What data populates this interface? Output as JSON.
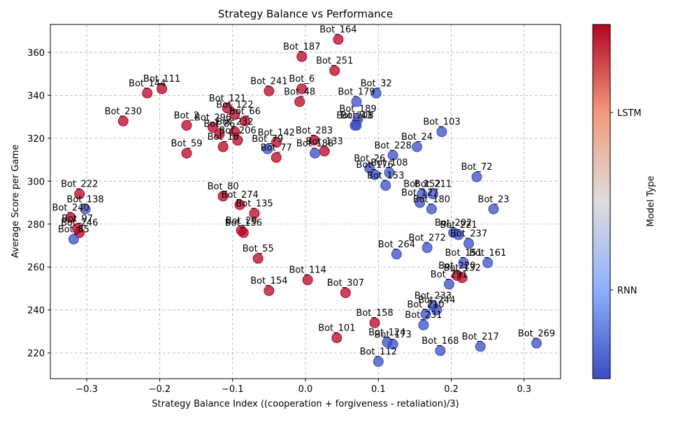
{
  "chart_data": {
    "type": "scatter",
    "title": "Strategy Balance vs Performance",
    "xlabel": "Strategy Balance Index ((cooperation + forgiveness - retaliation)/3)",
    "ylabel": "Average Score per Game",
    "xlim": [
      -0.35,
      0.35
    ],
    "ylim": [
      208,
      373
    ],
    "xticks": [
      -0.3,
      -0.2,
      -0.1,
      0.0,
      0.1,
      0.2,
      0.3
    ],
    "xtick_labels": [
      "−0.3",
      "−0.2",
      "−0.1",
      "0.0",
      "0.1",
      "0.2",
      "0.3"
    ],
    "yticks": [
      220,
      240,
      260,
      280,
      300,
      320,
      340,
      360
    ],
    "ytick_labels": [
      "220",
      "240",
      "260",
      "280",
      "300",
      "320",
      "340",
      "360"
    ],
    "grid": true,
    "colorbar": {
      "label": "Model Type",
      "ticks": [
        {
          "label": "LSTM",
          "value": 1
        },
        {
          "label": "RNN",
          "value": 0
        }
      ],
      "low_color": "#3b4cc0",
      "mid_color": "#dddddd",
      "high_color": "#b40426"
    },
    "colors": {
      "RNN": "#3b4cc0",
      "LSTM": "#b40426"
    },
    "points": [
      {
        "name": "Bot_164",
        "x": 0.045,
        "y": 366,
        "model": "LSTM"
      },
      {
        "name": "Bot_187",
        "x": -0.005,
        "y": 358,
        "model": "LSTM"
      },
      {
        "name": "Bot_251",
        "x": 0.04,
        "y": 351.5,
        "model": "LSTM"
      },
      {
        "name": "Bot_111",
        "x": -0.197,
        "y": 343,
        "model": "LSTM"
      },
      {
        "name": "Bot_144",
        "x": -0.217,
        "y": 341,
        "model": "LSTM"
      },
      {
        "name": "Bot_241",
        "x": -0.05,
        "y": 342,
        "model": "LSTM"
      },
      {
        "name": "Bot_6",
        "x": -0.005,
        "y": 343,
        "model": "LSTM"
      },
      {
        "name": "Bot_32",
        "x": 0.097,
        "y": 341,
        "model": "RNN"
      },
      {
        "name": "Bot_48",
        "x": -0.008,
        "y": 337,
        "model": "LSTM"
      },
      {
        "name": "Bot_179",
        "x": 0.07,
        "y": 337,
        "model": "RNN"
      },
      {
        "name": "Bot_121",
        "x": -0.107,
        "y": 334,
        "model": "LSTM"
      },
      {
        "name": "Bot_122",
        "x": -0.097,
        "y": 331,
        "model": "LSTM"
      },
      {
        "name": "Bot_230",
        "x": -0.25,
        "y": 328,
        "model": "LSTM"
      },
      {
        "name": "Bot_2",
        "x": -0.163,
        "y": 326,
        "model": "LSTM"
      },
      {
        "name": "Bot_66",
        "x": -0.083,
        "y": 328,
        "model": "LSTM"
      },
      {
        "name": "Bot_296",
        "x": -0.127,
        "y": 325,
        "model": "LSTM"
      },
      {
        "name": "Bot_232",
        "x": -0.097,
        "y": 323,
        "model": "LSTM"
      },
      {
        "name": "Bot_206",
        "x": -0.093,
        "y": 319,
        "model": "LSTM"
      },
      {
        "name": "Bot_86",
        "x": -0.118,
        "y": 322,
        "model": "LSTM"
      },
      {
        "name": "Bot_10",
        "x": -0.113,
        "y": 316,
        "model": "LSTM"
      },
      {
        "name": "Bot_59",
        "x": -0.163,
        "y": 313,
        "model": "LSTM"
      },
      {
        "name": "Bot_142",
        "x": -0.04,
        "y": 318,
        "model": "LSTM"
      },
      {
        "name": "Bot_79",
        "x": -0.052,
        "y": 315,
        "model": "RNN"
      },
      {
        "name": "Bot_77",
        "x": -0.04,
        "y": 311,
        "model": "LSTM"
      },
      {
        "name": "Bot_208",
        "x": 0.068,
        "y": 326,
        "model": "RNN"
      },
      {
        "name": "Bot_189",
        "x": 0.072,
        "y": 329,
        "model": "RNN"
      },
      {
        "name": "Bot_43",
        "x": 0.07,
        "y": 326,
        "model": "RNN"
      },
      {
        "name": "Bot_103",
        "x": 0.187,
        "y": 323,
        "model": "RNN"
      },
      {
        "name": "Bot_24",
        "x": 0.153,
        "y": 316,
        "model": "RNN"
      },
      {
        "name": "Bot_228",
        "x": 0.12,
        "y": 312,
        "model": "RNN"
      },
      {
        "name": "Bot_26",
        "x": 0.088,
        "y": 306,
        "model": "RNN"
      },
      {
        "name": "Bot_108",
        "x": 0.115,
        "y": 304,
        "model": "RNN"
      },
      {
        "name": "Bot_176",
        "x": 0.095,
        "y": 303,
        "model": "RNN"
      },
      {
        "name": "Bot_283",
        "x": 0.012,
        "y": 319,
        "model": "LSTM"
      },
      {
        "name": "Bot_133",
        "x": 0.026,
        "y": 314,
        "model": "LSTM"
      },
      {
        "name": "Bot_188",
        "x": 0.013,
        "y": 313,
        "model": "RNN"
      },
      {
        "name": "Bot_153",
        "x": 0.11,
        "y": 298,
        "model": "RNN"
      },
      {
        "name": "Bot_72",
        "x": 0.235,
        "y": 302,
        "model": "RNN"
      },
      {
        "name": "Bot_152",
        "x": 0.16,
        "y": 294,
        "model": "RNN"
      },
      {
        "name": "Bot_211",
        "x": 0.175,
        "y": 294,
        "model": "RNN"
      },
      {
        "name": "Bot_127",
        "x": 0.157,
        "y": 290,
        "model": "RNN"
      },
      {
        "name": "Bot_180",
        "x": 0.173,
        "y": 287,
        "model": "RNN"
      },
      {
        "name": "Bot_23",
        "x": 0.258,
        "y": 287,
        "model": "RNN"
      },
      {
        "name": "Bot_80",
        "x": -0.113,
        "y": 293,
        "model": "LSTM"
      },
      {
        "name": "Bot_274",
        "x": -0.09,
        "y": 289,
        "model": "LSTM"
      },
      {
        "name": "Bot_135",
        "x": -0.07,
        "y": 285,
        "model": "LSTM"
      },
      {
        "name": "Bot_222",
        "x": -0.31,
        "y": 294,
        "model": "LSTM"
      },
      {
        "name": "Bot_138",
        "x": -0.302,
        "y": 287,
        "model": "RNN"
      },
      {
        "name": "Bot_240",
        "x": -0.322,
        "y": 283,
        "model": "LSTM"
      },
      {
        "name": "Bot_97",
        "x": -0.313,
        "y": 278,
        "model": "LSTM"
      },
      {
        "name": "Bot_246",
        "x": -0.31,
        "y": 276,
        "model": "LSTM"
      },
      {
        "name": "Bot_85",
        "x": -0.318,
        "y": 273,
        "model": "RNN"
      },
      {
        "name": "Bot_29",
        "x": -0.088,
        "y": 277,
        "model": "LSTM"
      },
      {
        "name": "Bot_156",
        "x": -0.085,
        "y": 276,
        "model": "LSTM"
      },
      {
        "name": "Bot_202",
        "x": 0.203,
        "y": 276,
        "model": "RNN"
      },
      {
        "name": "Bot_221",
        "x": 0.21,
        "y": 275,
        "model": "RNN"
      },
      {
        "name": "Bot_237",
        "x": 0.224,
        "y": 271,
        "model": "RNN"
      },
      {
        "name": "Bot_272",
        "x": 0.167,
        "y": 269,
        "model": "RNN"
      },
      {
        "name": "Bot_264",
        "x": 0.125,
        "y": 266,
        "model": "RNN"
      },
      {
        "name": "Bot_151",
        "x": 0.217,
        "y": 262,
        "model": "RNN"
      },
      {
        "name": "Bot_161",
        "x": 0.25,
        "y": 262,
        "model": "RNN"
      },
      {
        "name": "Bot_220",
        "x": 0.208,
        "y": 256,
        "model": "LSTM"
      },
      {
        "name": "Bot_132",
        "x": 0.215,
        "y": 255,
        "model": "LSTM"
      },
      {
        "name": "Bot_291",
        "x": 0.197,
        "y": 252,
        "model": "RNN"
      },
      {
        "name": "Bot_55",
        "x": -0.065,
        "y": 264,
        "model": "LSTM"
      },
      {
        "name": "Bot_154",
        "x": -0.05,
        "y": 249,
        "model": "LSTM"
      },
      {
        "name": "Bot_114",
        "x": 0.003,
        "y": 254,
        "model": "LSTM"
      },
      {
        "name": "Bot_307",
        "x": 0.055,
        "y": 248,
        "model": "LSTM"
      },
      {
        "name": "Bot_101",
        "x": 0.043,
        "y": 227,
        "model": "LSTM"
      },
      {
        "name": "Bot_112",
        "x": 0.1,
        "y": 216,
        "model": "RNN"
      },
      {
        "name": "Bot_173",
        "x": 0.12,
        "y": 224,
        "model": "RNN"
      },
      {
        "name": "Bot_124",
        "x": 0.112,
        "y": 225,
        "model": "RNN"
      },
      {
        "name": "Bot_231",
        "x": 0.162,
        "y": 233,
        "model": "RNN"
      },
      {
        "name": "Bot_168",
        "x": 0.185,
        "y": 221,
        "model": "RNN"
      },
      {
        "name": "Bot_217",
        "x": 0.24,
        "y": 223,
        "model": "RNN"
      },
      {
        "name": "Bot_269",
        "x": 0.317,
        "y": 224.5,
        "model": "RNN"
      },
      {
        "name": "Bot_210",
        "x": 0.165,
        "y": 238,
        "model": "RNN"
      },
      {
        "name": "Bot_244",
        "x": 0.18,
        "y": 240,
        "model": "RNN"
      },
      {
        "name": "Bot_233",
        "x": 0.175,
        "y": 242,
        "model": "RNN"
      },
      {
        "name": "Bot_158",
        "x": 0.095,
        "y": 234,
        "model": "LSTM"
      }
    ]
  }
}
